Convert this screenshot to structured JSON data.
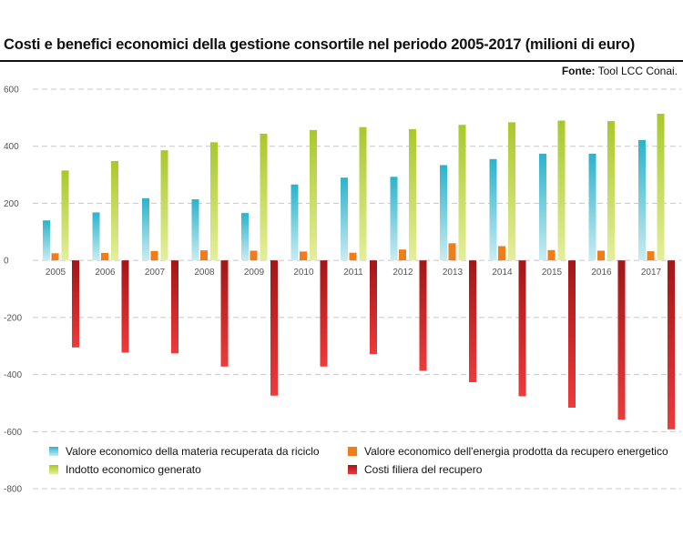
{
  "header": {
    "title": "Costi e benefici economici della gestione consortile nel periodo 2005-2017 (milioni di euro)",
    "source_label": "Fonte:",
    "source_text": "Tool LCC Conai."
  },
  "colors": {
    "materia_top": "#2bb3cc",
    "materia_bottom": "#c8ecf2",
    "energia": "#f07d1a",
    "indotto_top": "#a9c82a",
    "indotto_bottom": "#e4ef9a",
    "costi_top": "#a31617",
    "costi_bottom": "#ee3a3a",
    "grid": "#c8c8c8"
  },
  "chart_data": {
    "type": "bar",
    "title": "Costi e benefici economici della gestione consortile nel periodo 2005-2017 (milioni di euro)",
    "categories": [
      "2005",
      "2006",
      "2007",
      "2008",
      "2009",
      "2010",
      "2011",
      "2012",
      "2013",
      "2014",
      "2015",
      "2016",
      "2017"
    ],
    "ylim": [
      -800,
      600
    ],
    "yticks": [
      600,
      400,
      200,
      0,
      -200,
      -400,
      -600,
      -800
    ],
    "ytick_labels": [
      "600",
      "400",
      "200",
      "0",
      "-200",
      "-400",
      "-600",
      "-800"
    ],
    "grid": true,
    "legend_position": "bottom-left",
    "series": [
      {
        "name": "Valore economico della materia recuperata da riciclo",
        "values": [
          140,
          168,
          218,
          214,
          166,
          266,
          290,
          293,
          334,
          355,
          374,
          374,
          422
        ]
      },
      {
        "name": "Valore economico dell'energia prodotta da recupero energetico",
        "values": [
          25,
          26,
          33,
          35,
          34,
          31,
          27,
          38,
          60,
          50,
          36,
          34,
          32
        ]
      },
      {
        "name": "Indotto economico generato",
        "values": [
          315,
          348,
          386,
          414,
          444,
          457,
          467,
          460,
          475,
          484,
          490,
          488,
          514
        ]
      },
      {
        "name": "Costi filiera del recupero",
        "values": [
          -305,
          -323,
          -326,
          -372,
          -474,
          -372,
          -328,
          -387,
          -427,
          -476,
          -516,
          -558,
          -592
        ]
      }
    ]
  }
}
